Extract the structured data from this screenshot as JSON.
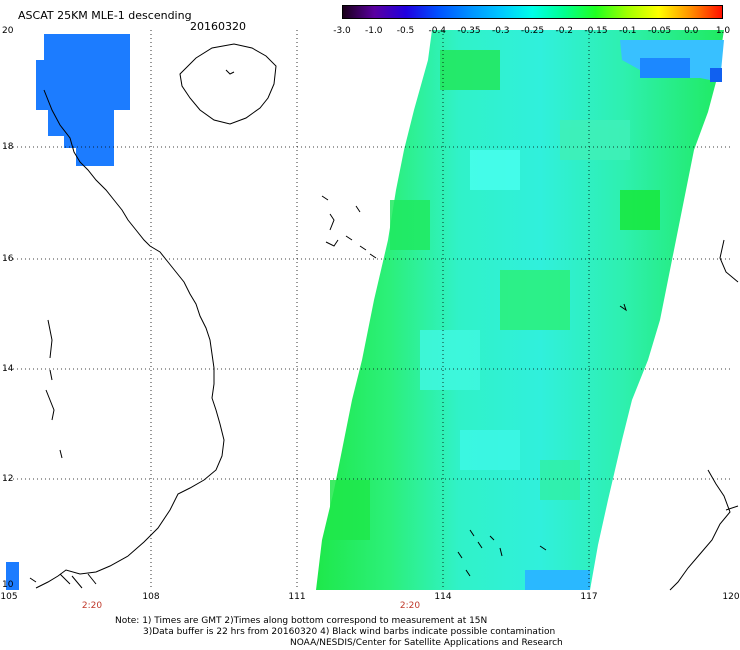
{
  "header": {
    "title": "ASCAT 25KM MLE-1 descending",
    "date": "20160320"
  },
  "colorbar": {
    "labels": [
      "-3.0",
      "-1.0",
      "-0.5",
      "-0.4",
      "-0.35",
      "-0.3",
      "-0.25",
      "-0.2",
      "-0.15",
      "-0.1",
      "-0.05",
      "0.0",
      "1.0"
    ],
    "colors": [
      "#1a001a",
      "#5a00a0",
      "#2000e0",
      "#0050ff",
      "#0090ff",
      "#00c8ff",
      "#00ffe8",
      "#00ff90",
      "#20ff20",
      "#a0ff00",
      "#ffff00",
      "#ff9000",
      "#ff1000"
    ]
  },
  "map": {
    "lat_labels": [
      "20",
      "18",
      "16",
      "14",
      "12",
      "10"
    ],
    "lon_labels": [
      "105",
      "108",
      "111",
      "114",
      "117",
      "120"
    ],
    "time_labels": [
      "2:20",
      "2:20"
    ],
    "palette": {
      "green": "#1ee84a",
      "light_green": "#3cf06e",
      "cyan": "#28f0d2",
      "cyan_light": "#40ffe6",
      "blue": "#1c7cff",
      "deep_blue": "#1060f0"
    }
  },
  "footer": {
    "line1": "Note: 1) Times are GMT 2)Times along bottom correspond to measurement at 15N",
    "line2": "3)Data buffer is 22 hrs from 20160320 4) Black wind barbs indicate possible contamination",
    "line3": "NOAA/NESDIS/Center for Satellite Applications and Research"
  }
}
